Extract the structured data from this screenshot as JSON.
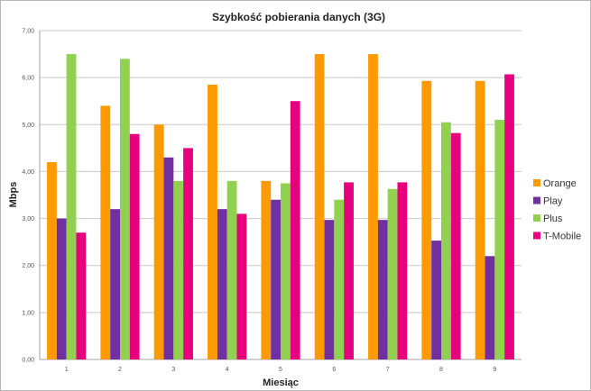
{
  "chart_data": {
    "type": "bar",
    "title": "Szybkość pobierania danych  (3G)",
    "xlabel": "Miesiąc",
    "ylabel": "Mbps",
    "ylim": [
      0,
      7
    ],
    "yticks": [
      "0,00",
      "1,00",
      "2,00",
      "3,00",
      "4,00",
      "5,00",
      "6,00",
      "7,00"
    ],
    "grid": true,
    "legend_position": "right",
    "categories": [
      "1",
      "2",
      "3",
      "4",
      "5",
      "6",
      "7",
      "8",
      "9"
    ],
    "series": [
      {
        "name": "Orange",
        "color": "#ff9900",
        "values": [
          4.2,
          5.4,
          5.0,
          5.85,
          3.8,
          6.5,
          6.5,
          5.93,
          5.93
        ]
      },
      {
        "name": "Play",
        "color": "#7030a0",
        "values": [
          3.0,
          3.2,
          4.3,
          3.2,
          3.4,
          2.97,
          2.97,
          2.53,
          2.2
        ]
      },
      {
        "name": "Plus",
        "color": "#92d050",
        "values": [
          6.5,
          6.4,
          3.8,
          3.8,
          3.75,
          3.4,
          3.63,
          5.05,
          5.1
        ]
      },
      {
        "name": "T-Mobile",
        "color": "#e6007e",
        "values": [
          2.7,
          4.8,
          4.5,
          3.1,
          5.5,
          3.77,
          3.77,
          4.82,
          6.07
        ]
      }
    ]
  }
}
